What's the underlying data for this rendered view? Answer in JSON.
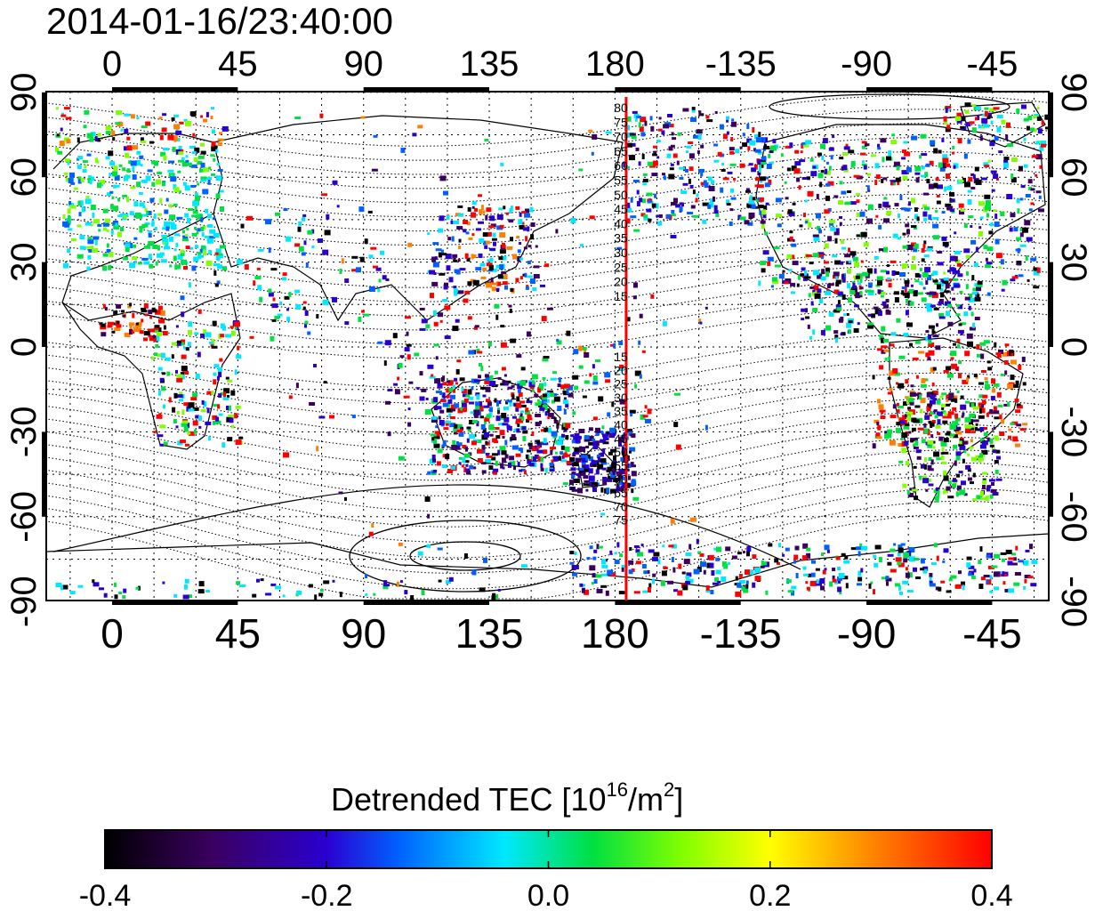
{
  "timestamp": "2014-01-16/23:40:00",
  "x_ticks": [
    "0",
    "45",
    "90",
    "135",
    "180",
    "-135",
    "-90",
    "-45"
  ],
  "y_ticks": [
    "90",
    "60",
    "30",
    "0",
    "-30",
    "-60",
    "-90"
  ],
  "contour_labels_north": [
    "80",
    "75",
    "70",
    "65",
    "60",
    "55",
    "50",
    "45",
    "40",
    "35",
    "30",
    "25",
    "20",
    "15"
  ],
  "contour_labels_south": [
    "15",
    "20",
    "25",
    "30",
    "35",
    "40",
    "45",
    "50",
    "55",
    "60",
    "65",
    "70",
    "75"
  ],
  "colorbar": {
    "title_main": "Detrended TEC  [10",
    "title_sup1": "16",
    "title_mid": "/m",
    "title_sup2": "2",
    "title_end": "]",
    "ticks": [
      "-0.4",
      "-0.2",
      "0.0",
      "0.2",
      "0.4"
    ],
    "range": [
      -0.4,
      0.4
    ],
    "colors": [
      "#000000",
      "#3a0060",
      "#2a00d0",
      "#0060ff",
      "#00e8ff",
      "#00e040",
      "#80ff00",
      "#ffff00",
      "#ff8000",
      "#ff0000"
    ]
  },
  "map": {
    "lon_center": 180,
    "marker_line_color": "#ff0000",
    "marker_longitude": 184
  }
}
